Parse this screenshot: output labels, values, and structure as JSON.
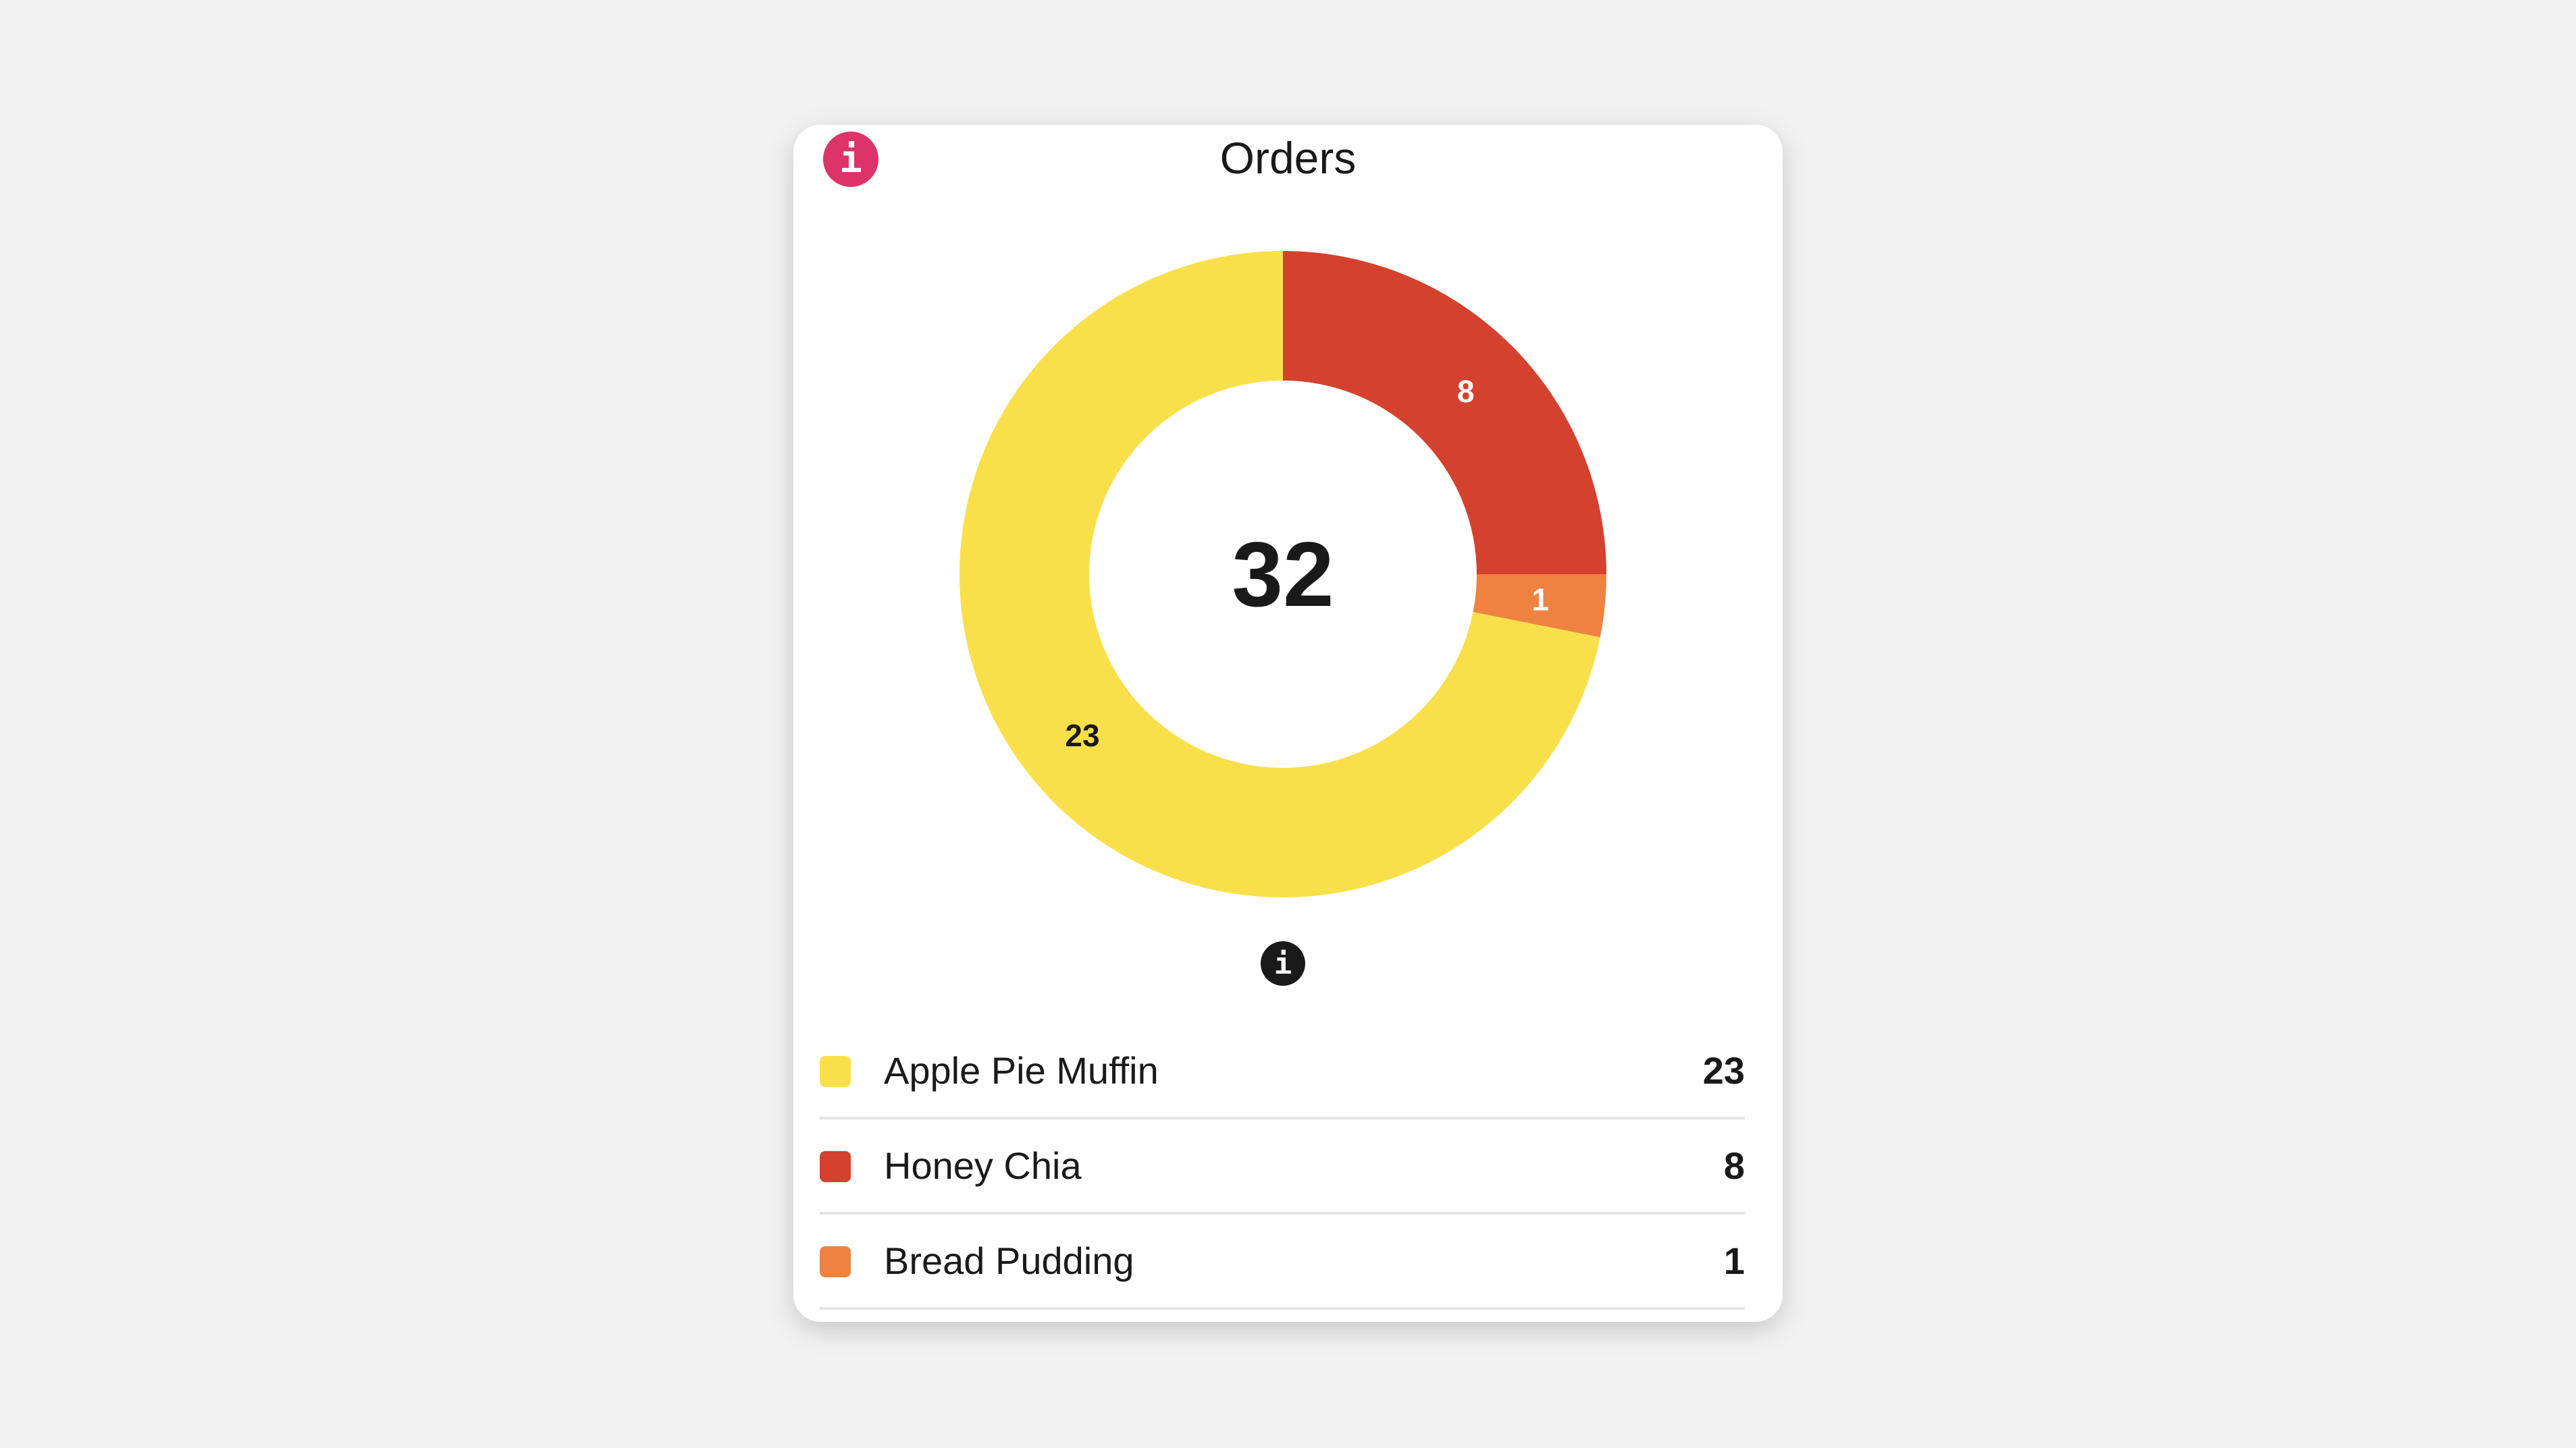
{
  "card": {
    "title": "Orders",
    "info_icon": "info-icon",
    "bottom_info_icon": "info-icon"
  },
  "chart_data": {
    "type": "pie",
    "variant": "donut",
    "title": "Orders",
    "center_total": "32",
    "slices": [
      {
        "label": "Apple Pie Muffin",
        "value": 23,
        "color": "#f9e04b",
        "label_color": "#1a1a1a"
      },
      {
        "label": "Honey Chia",
        "value": 8,
        "color": "#d4412e",
        "label_color": "#ffffff"
      },
      {
        "label": "Bread Pudding",
        "value": 1,
        "color": "#ef8240",
        "label_color": "#ffffff"
      }
    ],
    "draw_order": [
      "Honey Chia",
      "Bread Pudding",
      "Apple Pie Muffin"
    ],
    "start": "top",
    "direction": "clockwise"
  },
  "legend": [
    {
      "label": "Apple Pie Muffin",
      "value": "23",
      "color": "#f9e04b"
    },
    {
      "label": "Honey Chia",
      "value": "8",
      "color": "#d4412e"
    },
    {
      "label": "Bread Pudding",
      "value": "1",
      "color": "#ef8240"
    }
  ],
  "colors": {
    "info_accent": "#dc3369",
    "background": "#f2f2f2"
  }
}
